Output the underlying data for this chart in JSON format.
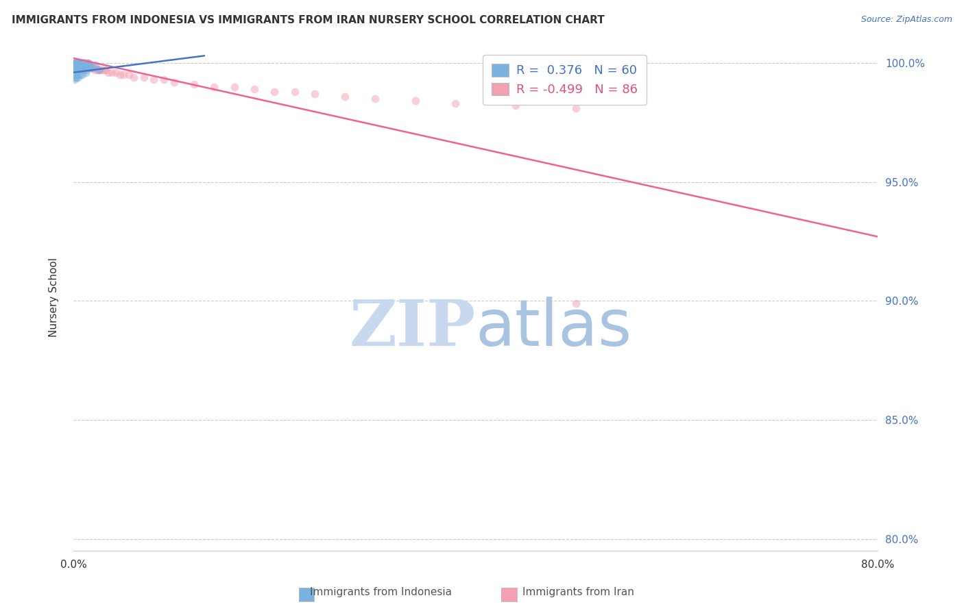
{
  "title": "IMMIGRANTS FROM INDONESIA VS IMMIGRANTS FROM IRAN NURSERY SCHOOL CORRELATION CHART",
  "source": "Source: ZipAtlas.com",
  "ylabel": "Nursery School",
  "xlim": [
    0.0,
    0.8
  ],
  "ylim": [
    0.795,
    1.008
  ],
  "yticks": [
    0.8,
    0.85,
    0.9,
    0.95,
    1.0
  ],
  "ytick_labels": [
    "80.0%",
    "85.0%",
    "90.0%",
    "95.0%",
    "100.0%"
  ],
  "xticks": [
    0.0,
    0.1,
    0.2,
    0.3,
    0.4,
    0.5,
    0.6,
    0.7,
    0.8
  ],
  "xtick_labels": [
    "0.0%",
    "",
    "",
    "",
    "",
    "",
    "",
    "",
    "80.0%"
  ],
  "color_indonesia": "#7ab3e0",
  "color_iran": "#f4a0b0",
  "line_color_indonesia": "#4472c4",
  "line_color_iran": "#f06090",
  "watermark_zip_color": "#c8d8ee",
  "watermark_atlas_color": "#a8c4e0",
  "background_color": "#ffffff",
  "scatter_alpha": 0.5,
  "scatter_size": 70,
  "indonesia_x": [
    0.001,
    0.001,
    0.002,
    0.002,
    0.002,
    0.002,
    0.003,
    0.003,
    0.003,
    0.003,
    0.004,
    0.004,
    0.004,
    0.005,
    0.005,
    0.005,
    0.006,
    0.006,
    0.007,
    0.007,
    0.008,
    0.008,
    0.009,
    0.01,
    0.01,
    0.011,
    0.012,
    0.013,
    0.014,
    0.015,
    0.001,
    0.001,
    0.002,
    0.002,
    0.003,
    0.003,
    0.004,
    0.004,
    0.005,
    0.006,
    0.007,
    0.008,
    0.009,
    0.01,
    0.011,
    0.013,
    0.015,
    0.017,
    0.019,
    0.022,
    0.001,
    0.002,
    0.002,
    0.003,
    0.004,
    0.005,
    0.007,
    0.009,
    0.012,
    0.025
  ],
  "indonesia_y": [
    0.999,
    1.0,
    0.999,
    1.0,
    1.0,
    1.0,
    0.999,
    1.0,
    1.0,
    1.0,
    0.999,
    1.0,
    1.0,
    0.999,
    1.0,
    1.0,
    0.999,
    1.0,
    0.999,
    1.0,
    0.999,
    1.0,
    1.0,
    0.999,
    1.0,
    1.0,
    0.999,
    1.0,
    1.0,
    1.0,
    0.997,
    0.998,
    0.997,
    0.998,
    0.997,
    0.998,
    0.997,
    0.998,
    0.997,
    0.998,
    0.997,
    0.997,
    0.998,
    0.997,
    0.998,
    0.997,
    0.998,
    0.998,
    0.998,
    0.999,
    0.993,
    0.994,
    0.995,
    0.994,
    0.995,
    0.994,
    0.995,
    0.995,
    0.996,
    0.997
  ],
  "iran_x": [
    0.001,
    0.001,
    0.001,
    0.002,
    0.002,
    0.002,
    0.002,
    0.003,
    0.003,
    0.003,
    0.003,
    0.003,
    0.004,
    0.004,
    0.004,
    0.004,
    0.004,
    0.005,
    0.005,
    0.005,
    0.005,
    0.006,
    0.006,
    0.006,
    0.006,
    0.007,
    0.007,
    0.007,
    0.008,
    0.008,
    0.008,
    0.009,
    0.009,
    0.009,
    0.01,
    0.01,
    0.01,
    0.011,
    0.011,
    0.012,
    0.012,
    0.013,
    0.013,
    0.014,
    0.014,
    0.015,
    0.016,
    0.016,
    0.017,
    0.018,
    0.018,
    0.019,
    0.02,
    0.021,
    0.022,
    0.023,
    0.025,
    0.026,
    0.028,
    0.03,
    0.032,
    0.035,
    0.038,
    0.042,
    0.046,
    0.05,
    0.055,
    0.06,
    0.07,
    0.08,
    0.09,
    0.1,
    0.12,
    0.14,
    0.16,
    0.18,
    0.2,
    0.22,
    0.24,
    0.27,
    0.3,
    0.34,
    0.38,
    0.44,
    0.5,
    0.5
  ],
  "iran_y": [
    1.0,
    1.0,
    1.0,
    1.0,
    1.0,
    0.999,
    1.0,
    1.0,
    0.999,
    1.0,
    1.0,
    0.999,
    1.0,
    1.0,
    0.999,
    0.999,
    1.0,
    1.0,
    0.999,
    0.999,
    1.0,
    0.999,
    1.0,
    0.999,
    1.0,
    0.999,
    1.0,
    0.999,
    0.999,
    1.0,
    0.999,
    0.999,
    1.0,
    0.999,
    0.999,
    1.0,
    0.999,
    0.999,
    1.0,
    0.999,
    0.999,
    0.998,
    0.999,
    0.998,
    0.999,
    0.998,
    0.999,
    0.998,
    0.998,
    0.998,
    0.999,
    0.998,
    0.998,
    0.997,
    0.998,
    0.997,
    0.997,
    0.997,
    0.997,
    0.997,
    0.997,
    0.996,
    0.996,
    0.996,
    0.995,
    0.995,
    0.995,
    0.994,
    0.994,
    0.993,
    0.993,
    0.992,
    0.991,
    0.99,
    0.99,
    0.989,
    0.988,
    0.988,
    0.987,
    0.986,
    0.985,
    0.984,
    0.983,
    0.982,
    0.981,
    0.899
  ],
  "iran_line_x": [
    0.0,
    0.8
  ],
  "iran_line_y": [
    1.002,
    0.927
  ],
  "indonesia_line_x": [
    0.0,
    0.13
  ],
  "indonesia_line_y": [
    0.996,
    1.003
  ]
}
